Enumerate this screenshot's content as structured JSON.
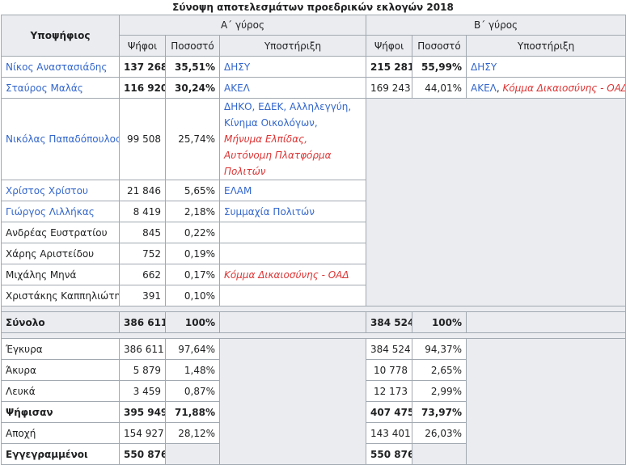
{
  "caption": "Σύνοψη αποτελεσμάτων προεδρικών εκλογών 2018",
  "headers": {
    "candidate": "Υποψήφιος",
    "round1": "Α΄ γύρος",
    "round2": "Β΄ γύρος",
    "votes": "Ψήφοι",
    "percent": "Ποσοστό",
    "support": "Υποστήριξη"
  },
  "candidates": [
    {
      "name": "Νίκος Αναστασιάδης",
      "v1": "137 268",
      "p1": "35,51%",
      "s1": "ΔΗΣΥ",
      "v2": "215 281",
      "p2": "55,99%",
      "s2": "ΔΗΣΥ"
    },
    {
      "name": "Σταύρος Μαλάς",
      "v1": "116 920",
      "p1": "30,24%",
      "s1": "ΑΚΕΛ",
      "v2": "169 243",
      "p2": "44,01%",
      "s2a": "ΑΚΕΛ",
      "s2sep": ", ",
      "s2b": "Κόμμα Δικαιοσύνης - ΟΑΔ"
    },
    {
      "name": "Νικόλας Παπαδόπουλος",
      "v1": "99 508",
      "p1": "25,74%",
      "s1a": "ΔΗΚΟ, ΕΔΕΚ, Αλληλεγγύη,",
      "s1b": "Κίνημα Οικολόγων,",
      "s1c": "Μήνυμα Ελπίδας,",
      "s1d": "Αυτόνομη Πλατφόρμα Πολιτών"
    },
    {
      "name": "Χρίστος Χρίστου",
      "v1": "21 846",
      "p1": "5,65%",
      "s1": "ΕΛΑΜ"
    },
    {
      "name": "Γιώργος Λιλλήκας",
      "v1": "8 419",
      "p1": "2,18%",
      "s1": "Συμμαχία Πολιτών"
    },
    {
      "name": "Ανδρέας Ευστρατίου",
      "v1": "845",
      "p1": "0,22%",
      "s1": ""
    },
    {
      "name": "Χάρης Αριστείδου",
      "v1": "752",
      "p1": "0,19%",
      "s1": ""
    },
    {
      "name": "Μιχάλης Μηνά",
      "v1": "662",
      "p1": "0,17%",
      "s1": "Κόμμα Δικαιοσύνης - ΟΑΔ"
    },
    {
      "name": "Χριστάκης Καππηλιώτης",
      "v1": "391",
      "p1": "0,10%",
      "s1": ""
    }
  ],
  "total": {
    "label": "Σύνολο",
    "v1": "386 611",
    "p1": "100%",
    "v2": "384 524",
    "p2": "100%"
  },
  "stats": [
    {
      "label": "Έγκυρα",
      "v1": "386 611",
      "p1": "97,64%",
      "v2": "384 524",
      "p2": "94,37%"
    },
    {
      "label": "Άκυρα",
      "v1": "5 879",
      "p1": "1,48%",
      "v2": "10 778",
      "p2": "2,65%"
    },
    {
      "label": "Λευκά",
      "v1": "3 459",
      "p1": "0,87%",
      "v2": "12 173",
      "p2": "2,99%"
    },
    {
      "label": "Ψήφισαν",
      "v1": "395 949",
      "p1": "71,88%",
      "v2": "407 475",
      "p2": "73,97%"
    },
    {
      "label": "Αποχή",
      "v1": "154 927",
      "p1": "28,12%",
      "v2": "143 401",
      "p2": "26,03%"
    },
    {
      "label": "Εγγεγραμμένοι",
      "v1": "550 876",
      "v2": "550 876"
    }
  ]
}
